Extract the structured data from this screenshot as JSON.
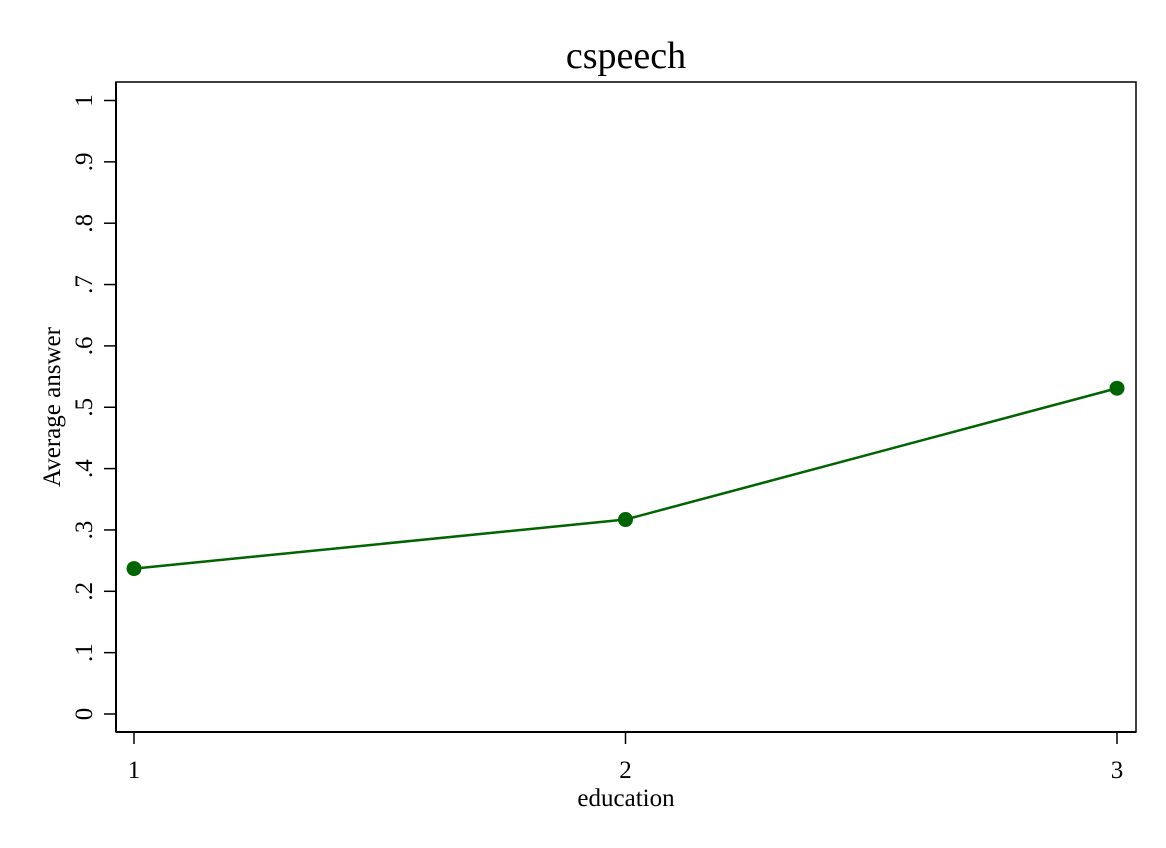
{
  "chart_data": {
    "type": "line",
    "title": "cspeech",
    "xlabel": "education",
    "ylabel": "Average answer",
    "x": [
      1,
      2,
      3
    ],
    "x_ticks": [
      "1",
      "2",
      "3"
    ],
    "series": [
      {
        "values": [
          0.237,
          0.317,
          0.531
        ],
        "color": "#006400"
      }
    ],
    "ylim": [
      0,
      1
    ],
    "y_ticks": [
      "0",
      ".1",
      ".2",
      ".3",
      ".4",
      ".5",
      ".6",
      ".7",
      ".8",
      ".9",
      "1"
    ],
    "grid": false,
    "legend": "none"
  }
}
